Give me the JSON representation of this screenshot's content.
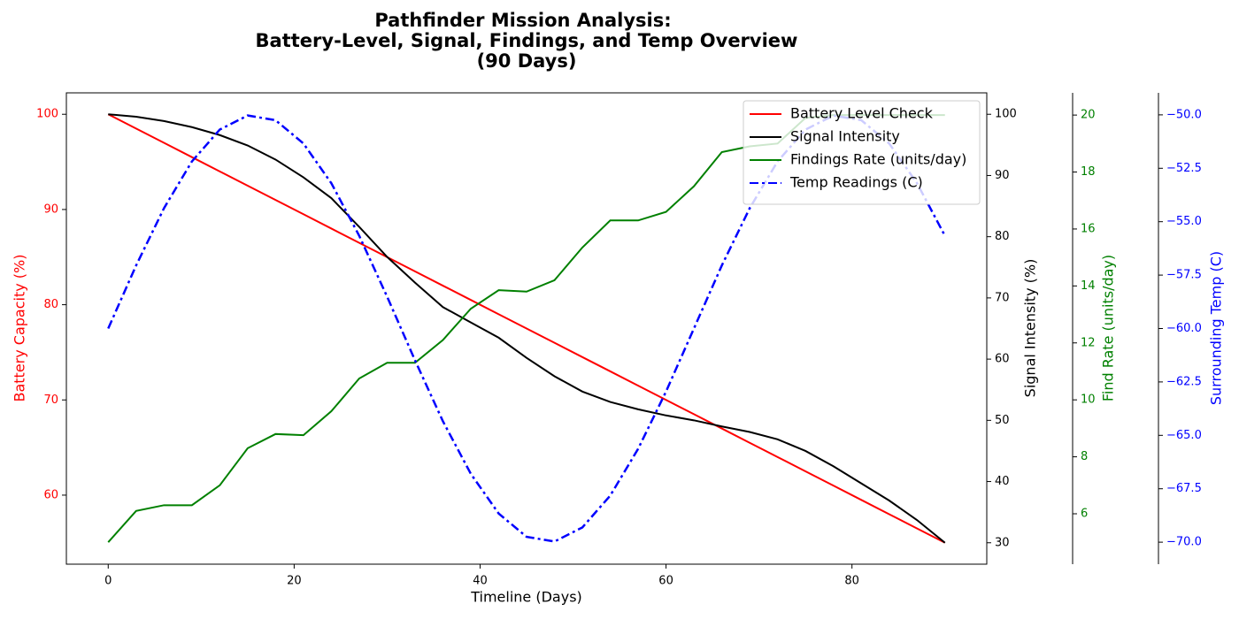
{
  "chart_data": {
    "type": "line",
    "title": [
      "Pathfinder Mission Analysis:",
      "Battery-Level, Signal, Findings, and Temp Overview",
      "(90 Days)"
    ],
    "xlabel": "Timeline (Days)",
    "ylabel": "Battery Capacity (%)",
    "y2label": "Signal Intensity (%)",
    "y3label": "Find Rate (units/day)",
    "y4label": "Surrounding Temp (C)",
    "x": [
      0,
      3,
      6,
      9,
      12,
      15,
      18,
      21,
      24,
      27,
      30,
      33,
      36,
      39,
      42,
      45,
      48,
      51,
      54,
      57,
      60,
      63,
      66,
      69,
      72,
      75,
      78,
      81,
      84,
      87,
      90
    ],
    "xlim": [
      -4.5,
      94.5
    ],
    "xticks": [
      0,
      20,
      40,
      60,
      80
    ],
    "ylim": [
      52.75,
      102.25
    ],
    "yticks": [
      60,
      70,
      80,
      90,
      100
    ],
    "y2lim": [
      26.5,
      103.5
    ],
    "y2ticks": [
      30,
      40,
      50,
      60,
      70,
      80,
      90,
      100
    ],
    "y3lim": [
      4.23,
      20.78
    ],
    "y3ticks": [
      6,
      8,
      10,
      12,
      14,
      16,
      18,
      20
    ],
    "y4lim": [
      -71.03,
      -48.97
    ],
    "y4ticks": [
      {
        "value": -70,
        "label": "−70.0"
      },
      {
        "value": -67.5,
        "label": "−67.5"
      },
      {
        "value": -65,
        "label": "−65.0"
      },
      {
        "value": -62.5,
        "label": "−62.5"
      },
      {
        "value": -60,
        "label": "−60.0"
      },
      {
        "value": -57.5,
        "label": "−57.5"
      },
      {
        "value": -55,
        "label": "−55.0"
      },
      {
        "value": -52.5,
        "label": "−52.5"
      },
      {
        "value": -50,
        "label": "−50.0"
      }
    ],
    "legend": "upper right",
    "series": [
      {
        "name": "Battery Level Check",
        "color": "#ff0000",
        "axis": "y",
        "linestyle": "solid",
        "values": [
          100,
          98.5,
          97,
          95.5,
          94,
          92.5,
          91,
          89.5,
          88,
          86.5,
          85,
          83.5,
          82,
          80.5,
          79,
          77.5,
          76,
          74.5,
          73,
          71.5,
          70,
          68.5,
          67,
          65.5,
          64,
          62.5,
          61,
          59.5,
          58,
          56.5,
          55
        ]
      },
      {
        "name": "Signal Intensity",
        "color": "#000000",
        "axis": "y2",
        "linestyle": "solid",
        "values": [
          100,
          99.6,
          98.9,
          97.9,
          96.6,
          94.9,
          92.6,
          89.7,
          86.3,
          81.6,
          76.7,
          72.5,
          68.5,
          66.0,
          63.5,
          60.2,
          57.2,
          54.7,
          53.0,
          51.8,
          50.8,
          50.0,
          49.0,
          48.1,
          46.9,
          45.0,
          42.5,
          39.7,
          36.9,
          33.7,
          30
        ]
      },
      {
        "name": "Findings Rate (units/day)",
        "color": "#008000",
        "axis": "y3",
        "linestyle": "solid",
        "values": [
          5,
          6.1,
          6.3,
          6.3,
          7.0,
          8.3,
          8.8,
          8.76,
          9.6,
          10.75,
          11.3,
          11.3,
          12.1,
          13.2,
          13.85,
          13.8,
          14.2,
          15.35,
          16.3,
          16.3,
          16.6,
          17.5,
          18.7,
          18.9,
          19.0,
          19.9,
          20,
          20,
          20,
          20,
          20
        ]
      },
      {
        "name": "Temp Readings (C)",
        "color": "#0000ff",
        "axis": "y4",
        "linestyle": "dashdot",
        "values": [
          -60,
          -57.05,
          -54.37,
          -52.18,
          -50.69,
          -50.03,
          -50.25,
          -51.34,
          -53.2,
          -55.66,
          -58.51,
          -61.49,
          -64.34,
          -66.8,
          -68.66,
          -69.75,
          -69.97,
          -69.31,
          -67.82,
          -65.63,
          -62.95,
          -60,
          -57.05,
          -54.37,
          -52.18,
          -50.69,
          -50.03,
          -50.25,
          -51.34,
          -53.2,
          -55.66
        ]
      }
    ]
  }
}
